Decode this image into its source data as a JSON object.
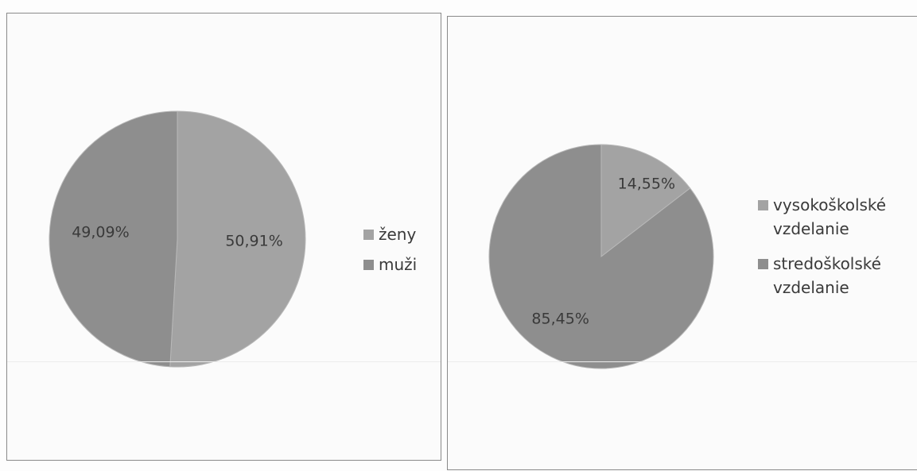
{
  "chart_data": [
    {
      "type": "pie",
      "title": "",
      "slices": [
        {
          "label": "ženy",
          "value": 50.91,
          "display": "50,91%",
          "color": "#a3a3a3"
        },
        {
          "label": "muži",
          "value": 49.09,
          "display": "49,09%",
          "color": "#8e8e8e"
        }
      ],
      "start": "12 o'clock, clockwise",
      "legend_position": "right"
    },
    {
      "type": "pie",
      "title": "",
      "slices": [
        {
          "label": "vysokoškolské vzdelanie",
          "value": 14.55,
          "display": "14,55%",
          "color": "#a3a3a3"
        },
        {
          "label": "stredoškolské vzdelanie",
          "value": 85.45,
          "display": "85,45%",
          "color": "#8e8e8e"
        }
      ],
      "start": "12 o'clock, clockwise",
      "legend_position": "right"
    }
  ]
}
